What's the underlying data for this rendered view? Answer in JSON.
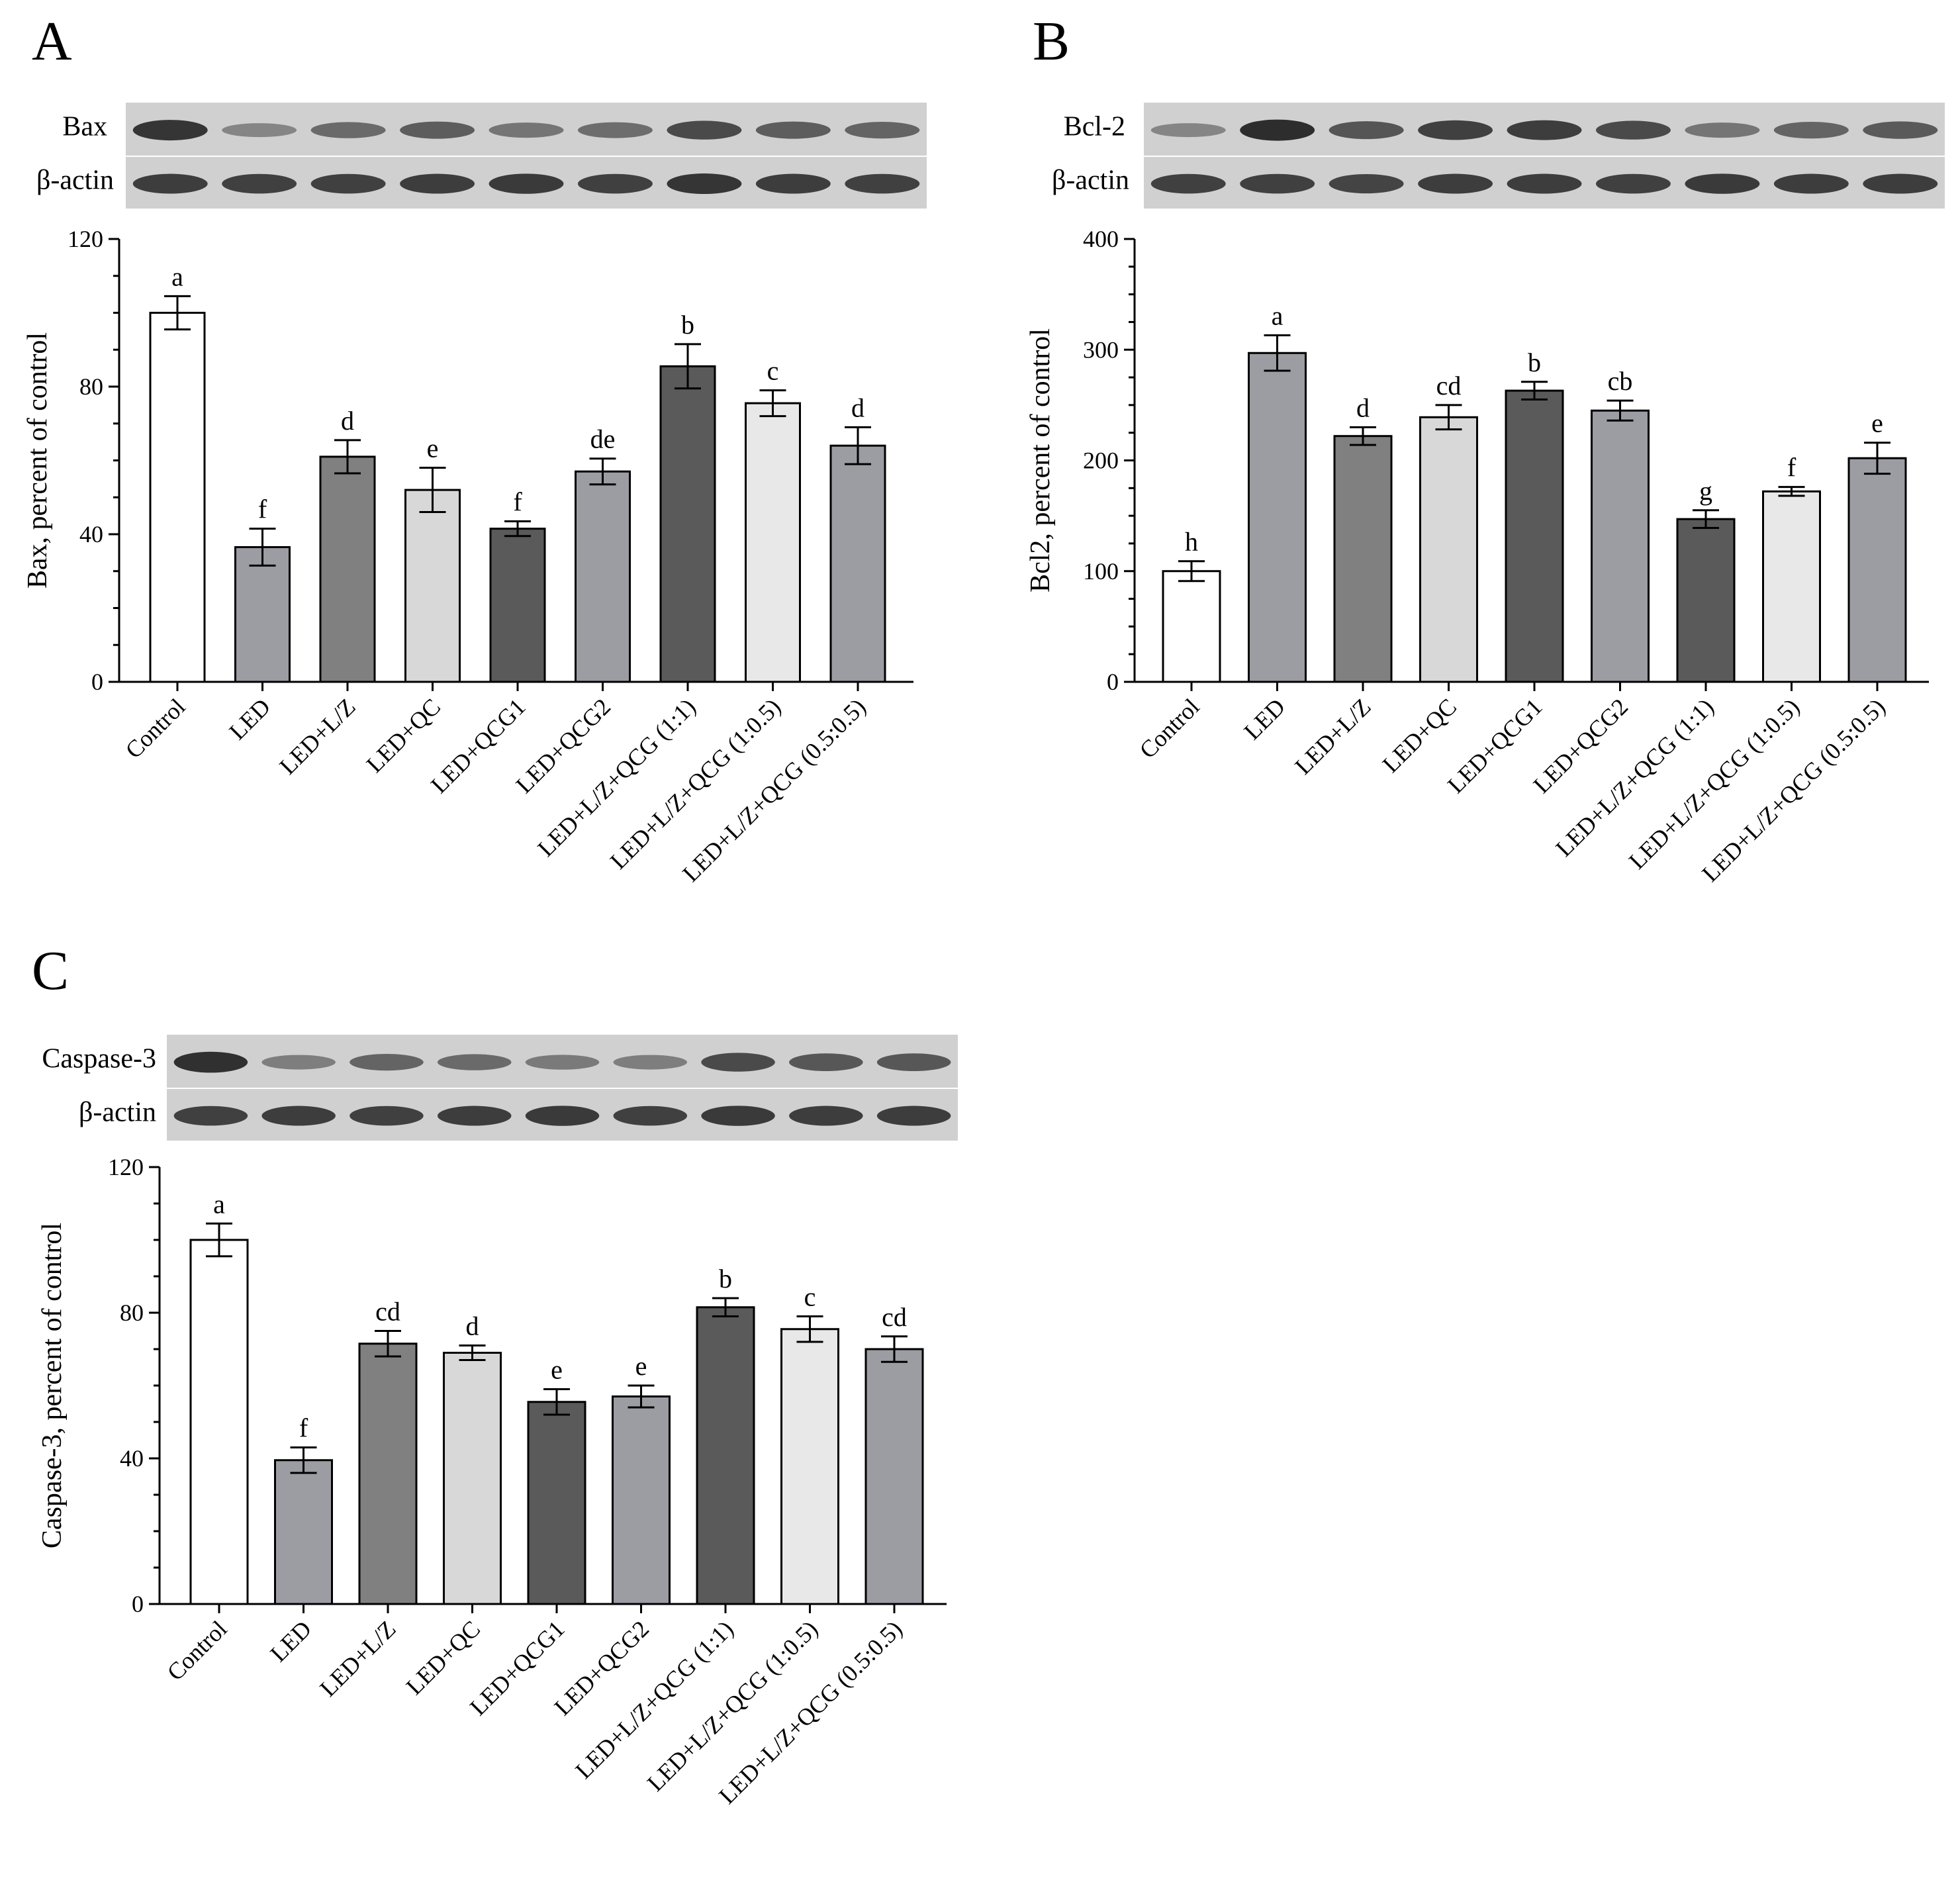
{
  "colors": {
    "white": "#ffffff",
    "medium_gray": "#9c9ca3",
    "gray": "#808080",
    "light_gray": "#d8d8d8",
    "dark_gray": "#5a5a5a",
    "very_light_gray": "#e8e8e8",
    "blot_background": "#d0d0d0"
  },
  "panels": [
    {
      "letter": "A",
      "blot_labels": [
        "Bax",
        "β-actin"
      ],
      "chart_data": {
        "type": "bar",
        "categories": [
          "Control",
          "LED",
          "LED+L/Z",
          "LED+QC",
          "LED+QCG1",
          "LED+QCG2",
          "LED+L/Z+QCG (1:1)",
          "LED+L/Z+QCG (1:0.5)",
          "LED+L/Z+QCG (0.5:0.5)"
        ],
        "values": [
          100,
          36.5,
          61,
          52,
          41.5,
          57,
          85.5,
          75.5,
          64
        ],
        "errors": [
          4.5,
          5,
          4.5,
          6,
          2,
          3.5,
          6,
          3.5,
          5
        ],
        "significance_letters": [
          "a",
          "f",
          "d",
          "e",
          "f",
          "de",
          "b",
          "c",
          "d"
        ],
        "bar_colors": [
          "white",
          "medium_gray",
          "gray",
          "light_gray",
          "dark_gray",
          "medium_gray",
          "dark_gray",
          "very_light_gray",
          "medium_gray"
        ],
        "ylabel": "Bax, percent of control",
        "ylim": [
          0,
          120
        ],
        "yticks": [
          0,
          40,
          80,
          120
        ],
        "grid": false,
        "legend": "none"
      }
    },
    {
      "letter": "B",
      "blot_labels": [
        "Bcl-2",
        "β-actin"
      ],
      "chart_data": {
        "type": "bar",
        "categories": [
          "Control",
          "LED",
          "LED+L/Z",
          "LED+QC",
          "LED+QCG1",
          "LED+QCG2",
          "LED+L/Z+QCG (1:1)",
          "LED+L/Z+QCG (1:0.5)",
          "LED+L/Z+QCG (0.5:0.5)"
        ],
        "values": [
          100,
          297,
          222,
          239,
          263,
          245,
          147,
          172,
          202
        ],
        "errors": [
          9,
          16,
          8,
          11,
          8,
          9,
          8,
          4,
          14
        ],
        "significance_letters": [
          "h",
          "a",
          "d",
          "cd",
          "b",
          "cb",
          "g",
          "f",
          "e"
        ],
        "bar_colors": [
          "white",
          "medium_gray",
          "gray",
          "light_gray",
          "dark_gray",
          "medium_gray",
          "dark_gray",
          "very_light_gray",
          "medium_gray"
        ],
        "ylabel": "Bcl2, percent of control",
        "ylim": [
          0,
          400
        ],
        "yticks": [
          0,
          100,
          200,
          300,
          400
        ],
        "grid": false,
        "legend": "none"
      }
    },
    {
      "letter": "C",
      "blot_labels": [
        "Caspase-3",
        "β-actin"
      ],
      "chart_data": {
        "type": "bar",
        "categories": [
          "Control",
          "LED",
          "LED+L/Z",
          "LED+QC",
          "LED+QCG1",
          "LED+QCG2",
          "LED+L/Z+QCG (1:1)",
          "LED+L/Z+QCG (1:0.5)",
          "LED+L/Z+QCG (0.5:0.5)"
        ],
        "values": [
          100,
          39.5,
          71.5,
          69,
          55.5,
          57,
          81.5,
          75.5,
          70
        ],
        "errors": [
          4.5,
          3.5,
          3.5,
          2,
          3.5,
          3,
          2.5,
          3.5,
          3.5
        ],
        "significance_letters": [
          "a",
          "f",
          "cd",
          "d",
          "e",
          "e",
          "b",
          "c",
          "cd"
        ],
        "bar_colors": [
          "white",
          "medium_gray",
          "gray",
          "light_gray",
          "dark_gray",
          "medium_gray",
          "dark_gray",
          "very_light_gray",
          "medium_gray"
        ],
        "ylabel": "Caspase-3, percent of control",
        "ylim": [
          0,
          120
        ],
        "yticks": [
          0,
          40,
          80,
          120
        ],
        "grid": false,
        "legend": "none"
      }
    }
  ]
}
